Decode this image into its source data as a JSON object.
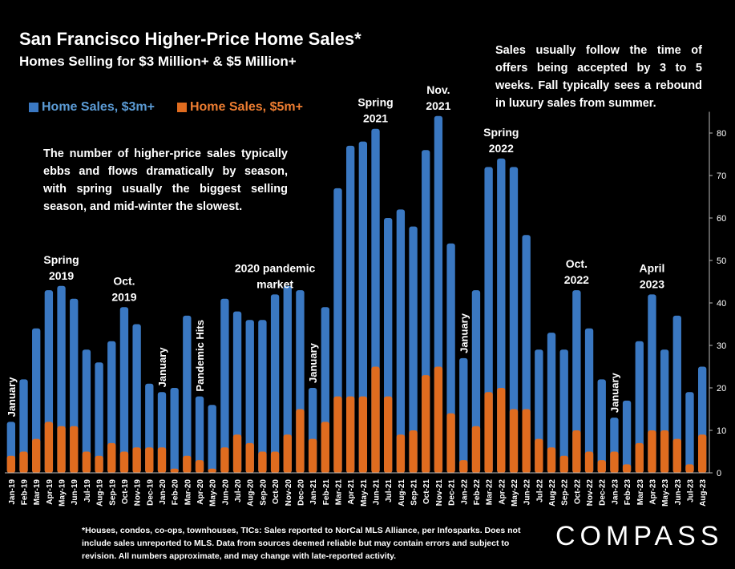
{
  "header": {
    "title": "San Francisco Higher-Price Home Sales*",
    "subtitle": "Homes Selling for $3 Million+ & $5 Million+"
  },
  "notes": {
    "right": "Sales usually follow the time of offers being accepted by 3 to 5 weeks. Fall typically sees a rebound in luxury sales from summer.",
    "left": "The number of higher-price sales typically ebbs and flows dramatically by season, with spring usually the biggest selling season, and mid-winter the slowest."
  },
  "footnote": "*Houses, condos, co-ops, townhouses, TICs:  Sales reported to NorCal MLS Alliance, per Infosparks. Does not include sales unreported to MLS. Data from sources deemed reliable but may contain errors and subject to revision.  All numbers approximate, and may change with late-reported activity.",
  "logo": "COMPASS",
  "chart_data": {
    "type": "bar",
    "title": "San Francisco Higher-Price Home Sales*",
    "ylim": [
      0,
      85
    ],
    "yticks": [
      0,
      10,
      20,
      30,
      40,
      50,
      60,
      70,
      80
    ],
    "y_axis_side": "right",
    "legend_position": "top-left",
    "grid": false,
    "colors": {
      "s3m": "#3a78c2",
      "s5m": "#e06c1f"
    },
    "categories": [
      "Jan-19",
      "Feb-19",
      "Mar-19",
      "Apr-19",
      "May-19",
      "Jun-19",
      "Jul-19",
      "Aug-19",
      "Sep-19",
      "Oct-19",
      "Nov-19",
      "Dec-19",
      "Jan-20",
      "Feb-20",
      "Mar-20",
      "Apr-20",
      "May-20",
      "Jun-20",
      "Jul-20",
      "Aug-20",
      "Sep-20",
      "Oct-20",
      "Nov-20",
      "Dec-20",
      "Jan-21",
      "Feb-21",
      "Mar-21",
      "Apr-21",
      "May-21",
      "Jun-21",
      "Jul-21",
      "Aug-21",
      "Sep-21",
      "Oct-21",
      "Nov-21",
      "Dec-21",
      "Jan-22",
      "Feb-22",
      "Mar-22",
      "Apr-22",
      "May-22",
      "Jun-22",
      "Jul-22",
      "Aug-22",
      "Sep-22",
      "Oct-22",
      "Nov-22",
      "Dec-22",
      "Jan-23",
      "Feb-23",
      "Mar-23",
      "Apr-23",
      "May-23",
      "Jun-23",
      "Jul-23",
      "Aug-23"
    ],
    "series": [
      {
        "name": "Home Sales, $3m+",
        "values": [
          12,
          22,
          34,
          43,
          44,
          41,
          29,
          26,
          31,
          39,
          35,
          21,
          19,
          20,
          37,
          18,
          16,
          41,
          38,
          36,
          36,
          42,
          44,
          43,
          20,
          39,
          67,
          77,
          78,
          81,
          60,
          62,
          58,
          76,
          84,
          54,
          27,
          43,
          72,
          74,
          72,
          56,
          29,
          33,
          29,
          43,
          34,
          22,
          13,
          17,
          31,
          42,
          29,
          37,
          19,
          25
        ]
      },
      {
        "name": "Home Sales, $5m+",
        "values": [
          4,
          5,
          8,
          12,
          11,
          11,
          5,
          4,
          7,
          5,
          6,
          6,
          6,
          1,
          4,
          3,
          1,
          6,
          9,
          7,
          5,
          5,
          9,
          15,
          8,
          12,
          18,
          18,
          18,
          25,
          18,
          9,
          10,
          23,
          25,
          14,
          3,
          11,
          19,
          20,
          15,
          15,
          8,
          6,
          4,
          10,
          5,
          3,
          5,
          2,
          7,
          10,
          10,
          8,
          2,
          9
        ]
      }
    ],
    "annotations": [
      {
        "index": 0,
        "text": "January",
        "rotated": true
      },
      {
        "index": 4,
        "text": "Spring 2019",
        "lines": [
          "Spring",
          "2019"
        ]
      },
      {
        "index": 9,
        "text": "Oct. 2019",
        "lines": [
          "Oct.",
          "2019"
        ]
      },
      {
        "index": 12,
        "text": "January",
        "rotated": true
      },
      {
        "index": 15,
        "text": "Pandemic Hits",
        "rotated": true
      },
      {
        "index": 21,
        "text": "2020 pandemic market",
        "lines": [
          "2020 pandemic",
          "market"
        ]
      },
      {
        "index": 24,
        "text": "January",
        "rotated": true
      },
      {
        "index": 29,
        "text": "Spring 2021",
        "lines": [
          "Spring",
          "2021"
        ]
      },
      {
        "index": 34,
        "text": "Nov. 2021",
        "lines": [
          "Nov.",
          "2021"
        ]
      },
      {
        "index": 36,
        "text": "January",
        "rotated": true
      },
      {
        "index": 39,
        "text": "Spring 2022",
        "lines": [
          "Spring",
          "2022"
        ]
      },
      {
        "index": 45,
        "text": "Oct. 2022",
        "lines": [
          "Oct.",
          "2022"
        ]
      },
      {
        "index": 48,
        "text": "January",
        "rotated": true
      },
      {
        "index": 51,
        "text": "April 2023",
        "lines": [
          "April",
          "2023"
        ]
      }
    ]
  }
}
